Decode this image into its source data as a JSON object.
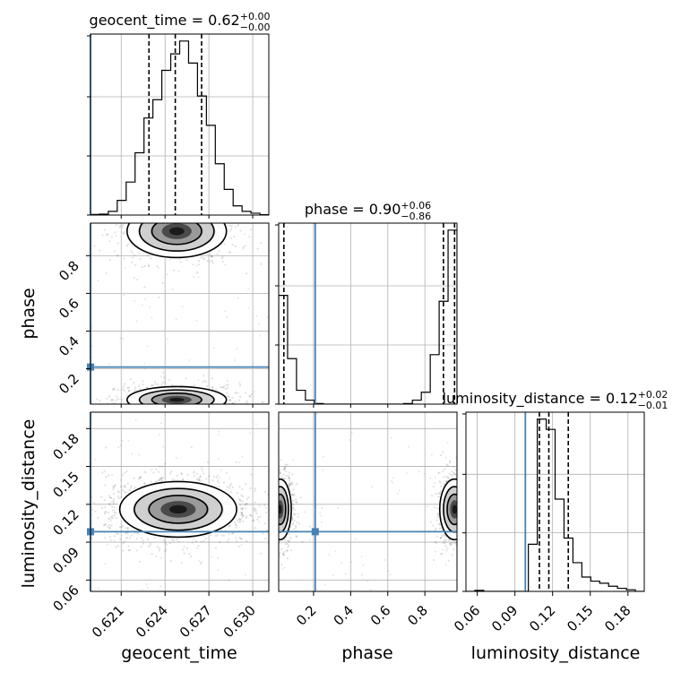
{
  "chart_data": {
    "type": "corner",
    "parameters": [
      "geocent_time",
      "phase",
      "luminosity_distance"
    ],
    "axis_labels": [
      "geocent_time",
      "phase",
      "luminosity_distance"
    ],
    "truths": {
      "geocent_time": 0.6189,
      "phase": 0.209,
      "luminosity_distance": 0.0983
    },
    "truth_color": "#4682b4",
    "grid": true,
    "titles": [
      {
        "name": "geocent_time",
        "value": "0.62",
        "plus": "+0.00",
        "minus": "−0.00"
      },
      {
        "name": "phase",
        "value": "0.90",
        "plus": "+0.06",
        "minus": "−0.86"
      },
      {
        "name": "luminosity_distance",
        "value": "0.12",
        "plus": "+0.02",
        "minus": "−0.01"
      }
    ],
    "ranges": {
      "geocent_time": [
        0.6189,
        0.6311
      ],
      "phase": [
        0.012,
        0.973
      ],
      "luminosity_distance": [
        0.051,
        0.193
      ]
    },
    "ticks": {
      "geocent_time": {
        "values": [
          0.621,
          0.624,
          0.627,
          0.63
        ],
        "labels": [
          "0.621",
          "0.624",
          "0.627",
          "0.630"
        ]
      },
      "phase_x": {
        "values": [
          0.2,
          0.4,
          0.6,
          0.8
        ],
        "labels": [
          "0.2",
          "0.4",
          "0.6",
          "0.8"
        ]
      },
      "phase_y": {
        "values": [
          0.2,
          0.4,
          0.6,
          0.8
        ],
        "labels": [
          "0.2",
          "0.4",
          "0.6",
          "0.8"
        ]
      },
      "luminosity_distance": {
        "values": [
          0.06,
          0.09,
          0.12,
          0.15,
          0.18
        ],
        "labels": [
          "0.06",
          "0.09",
          "0.12",
          "0.15",
          "0.18"
        ]
      }
    },
    "quantiles": {
      "geocent_time": [
        0.6229,
        0.6247,
        0.6265
      ],
      "phase": [
        0.04,
        0.9,
        0.96
      ],
      "luminosity_distance": [
        0.1095,
        0.117,
        0.1325
      ]
    },
    "marginals": {
      "geocent_time": {
        "edges": [
          0.6189,
          0.61951,
          0.62012,
          0.62073,
          0.62134,
          0.62195,
          0.62256,
          0.62317,
          0.62378,
          0.62439,
          0.625,
          0.62561,
          0.62622,
          0.62683,
          0.62744,
          0.62805,
          0.62866,
          0.62927,
          0.62988,
          0.63049,
          0.6311
        ],
        "counts": [
          0.003,
          0.005,
          0.02,
          0.08,
          0.18,
          0.34,
          0.53,
          0.63,
          0.79,
          0.88,
          0.95,
          0.83,
          0.65,
          0.49,
          0.28,
          0.14,
          0.05,
          0.02,
          0.01,
          0.002
        ]
      },
      "phase": {
        "edges": [
          0.012,
          0.0601,
          0.1081,
          0.1562,
          0.2042,
          0.2523,
          0.3003,
          0.3484,
          0.3964,
          0.4445,
          0.4925,
          0.5406,
          0.5886,
          0.6367,
          0.6847,
          0.7328,
          0.7808,
          0.8289,
          0.8769,
          0.925,
          0.973
        ],
        "counts": [
          0.55,
          0.23,
          0.07,
          0.02,
          0.003,
          0.0,
          0.0,
          0.0,
          0.0,
          0.0,
          0.0,
          0.0,
          0.0,
          0.0,
          0.003,
          0.02,
          0.06,
          0.25,
          0.52,
          0.88
        ]
      },
      "luminosity_distance": {
        "edges": [
          0.051,
          0.0581,
          0.0652,
          0.0723,
          0.0794,
          0.0865,
          0.0936,
          0.1007,
          0.1078,
          0.1149,
          0.122,
          0.1291,
          0.1362,
          0.1433,
          0.1504,
          0.1575,
          0.1646,
          0.1717,
          0.1788,
          0.1859,
          0.193
        ],
        "counts": [
          0.0,
          0.005,
          0.0,
          0.0,
          0.0,
          0.0,
          0.0,
          0.23,
          0.84,
          0.79,
          0.45,
          0.26,
          0.14,
          0.07,
          0.05,
          0.04,
          0.025,
          0.015,
          0.008,
          0.0
        ]
      }
    },
    "density_2d": [
      {
        "x": "geocent_time",
        "y": "phase",
        "peaks": [
          {
            "cx": 0.6248,
            "cy": 0.93,
            "sx": 0.0017,
            "sy": 0.07
          },
          {
            "cx": 0.6248,
            "cy": 0.035,
            "sx": 0.0017,
            "sy": 0.035
          }
        ]
      },
      {
        "x": "geocent_time",
        "y": "luminosity_distance",
        "peaks": [
          {
            "cx": 0.6249,
            "cy": 0.116,
            "sx": 0.002,
            "sy": 0.011
          }
        ]
      },
      {
        "x": "phase",
        "y": "luminosity_distance",
        "peaks": [
          {
            "cx": 0.02,
            "cy": 0.116,
            "sx": 0.03,
            "sy": 0.012
          },
          {
            "cx": 0.96,
            "cy": 0.116,
            "sx": 0.04,
            "sy": 0.012
          }
        ]
      }
    ],
    "contour_levels": [
      0.18,
      0.45,
      0.75
    ]
  }
}
